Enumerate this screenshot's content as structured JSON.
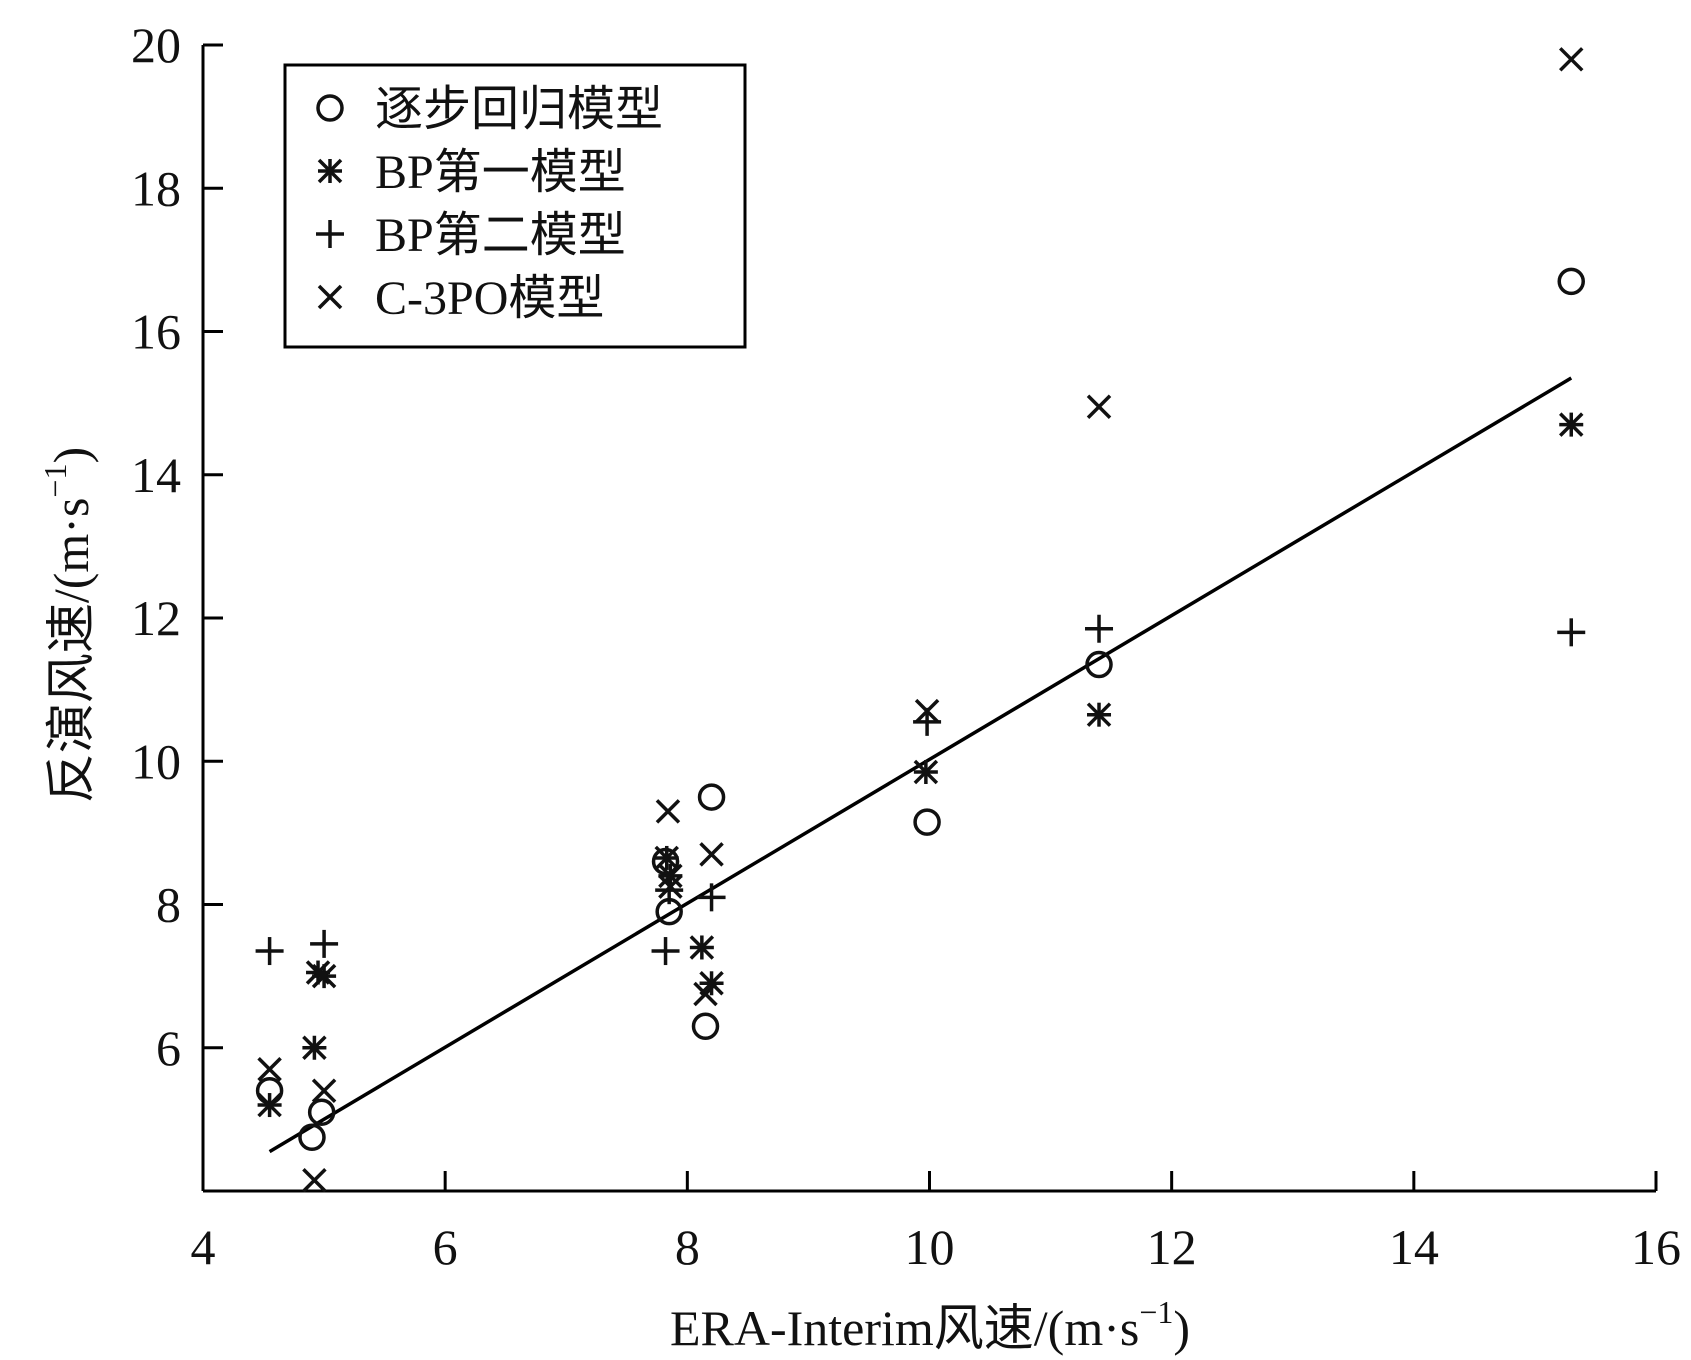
{
  "chart_data": {
    "type": "scatter",
    "xlabel": "ERA-Interim风速/(m·s",
    "xlabel_sup": "−1",
    "xlabel_close": ")",
    "ylabel": "反演风速/(m·s",
    "ylabel_sup": "−1",
    "ylabel_close": ")",
    "xlim": [
      4,
      16
    ],
    "ylim": [
      4,
      20
    ],
    "x_ticks": [
      4,
      6,
      8,
      10,
      12,
      14,
      16
    ],
    "y_ticks": [
      6,
      8,
      10,
      12,
      14,
      16,
      18,
      20
    ],
    "grid": false,
    "legend_position": "top-left",
    "series": [
      {
        "name": "逐步回归模型",
        "marker": "circle",
        "x": [
          4.55,
          4.9,
          4.98,
          7.82,
          7.85,
          8.15,
          8.2,
          9.98,
          11.4,
          15.3
        ],
        "y": [
          5.4,
          4.75,
          5.1,
          8.6,
          7.9,
          6.3,
          9.5,
          9.15,
          11.35,
          16.7
        ]
      },
      {
        "name": "BP第一模型",
        "marker": "asterisk",
        "x": [
          4.55,
          4.92,
          4.95,
          5.0,
          7.83,
          7.86,
          8.12,
          8.2,
          9.97,
          11.4,
          15.3
        ],
        "y": [
          5.2,
          6.0,
          7.05,
          7.0,
          8.65,
          8.4,
          7.4,
          6.9,
          9.85,
          10.65,
          14.7
        ]
      },
      {
        "name": "BP第二模型",
        "marker": "plus",
        "x": [
          4.55,
          5.0,
          7.82,
          7.85,
          8.2,
          9.98,
          11.4,
          15.3
        ],
        "y": [
          7.35,
          7.45,
          7.35,
          8.2,
          8.1,
          10.55,
          11.85,
          11.8
        ]
      },
      {
        "name": "C-3PO模型",
        "marker": "cross",
        "x": [
          4.55,
          4.92,
          5.0,
          7.84,
          7.86,
          8.15,
          8.2,
          9.98,
          11.4,
          15.3
        ],
        "y": [
          5.7,
          4.15,
          5.4,
          9.3,
          8.25,
          6.75,
          8.7,
          10.7,
          14.95,
          19.8
        ]
      }
    ],
    "fit_line": {
      "x": [
        4.55,
        15.3
      ],
      "y": [
        4.55,
        15.35
      ]
    }
  }
}
